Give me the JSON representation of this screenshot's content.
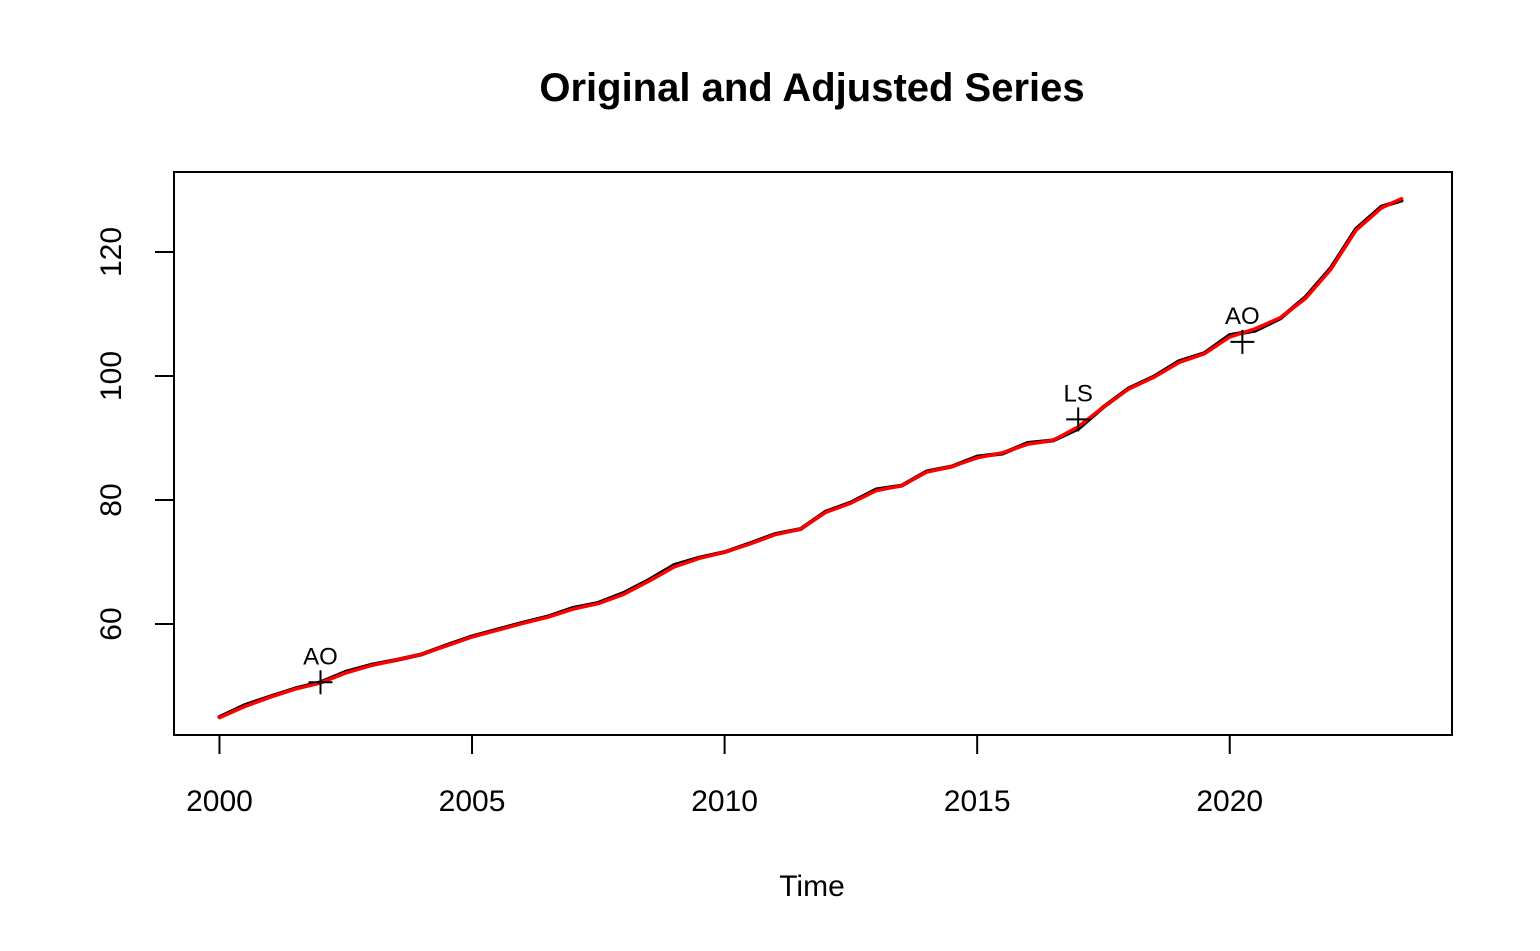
{
  "chart_data": {
    "type": "line",
    "title": "Original and Adjusted Series",
    "xlabel": "Time",
    "ylabel": "",
    "xlim": [
      1999.1,
      2024.4
    ],
    "ylim": [
      42.1,
      132.9
    ],
    "x_ticks": [
      2000,
      2005,
      2010,
      2015,
      2020
    ],
    "x_tick_labels": [
      "2000",
      "2005",
      "2010",
      "2015",
      "2020"
    ],
    "y_ticks": [
      60,
      80,
      100,
      120
    ],
    "y_tick_labels": [
      "60",
      "80",
      "100",
      "120"
    ],
    "grid": false,
    "legend": "none",
    "series": [
      {
        "color": "#000000",
        "x": [
          2000,
          2000.5,
          2001,
          2001.5,
          2002,
          2002.5,
          2003,
          2003.5,
          2004,
          2004.5,
          2005,
          2005.5,
          2006,
          2006.5,
          2007,
          2007.5,
          2008,
          2008.5,
          2009,
          2009.5,
          2010,
          2010.5,
          2011,
          2011.5,
          2012,
          2012.5,
          2013,
          2013.5,
          2014,
          2014.5,
          2015,
          2015.5,
          2016,
          2016.5,
          2017,
          2017.5,
          2018,
          2018.5,
          2019,
          2019.5,
          2020,
          2020.5,
          2021,
          2021.5,
          2022,
          2022.5,
          2023,
          2023.4
        ],
        "y": [
          45.0,
          46.9,
          48.3,
          49.6,
          50.6,
          52.3,
          53.4,
          54.2,
          55.1,
          56.6,
          58.0,
          59.1,
          60.2,
          61.2,
          62.6,
          63.4,
          65.0,
          67.1,
          69.5,
          70.7,
          71.6,
          73.0,
          74.5,
          75.3,
          78.1,
          79.6,
          81.7,
          82.3,
          84.6,
          85.4,
          87.0,
          87.5,
          89.2,
          89.6,
          91.5,
          95.0,
          98.0,
          99.9,
          102.4,
          103.7,
          106.6,
          107.3,
          109.3,
          112.7,
          117.4,
          123.7,
          127.3,
          128.3
        ]
      },
      {
        "color": "#ff0000",
        "x": [
          2000,
          2000.5,
          2001,
          2001.5,
          2002,
          2002.5,
          2003,
          2003.5,
          2004,
          2004.5,
          2005,
          2005.5,
          2006,
          2006.5,
          2007,
          2007.5,
          2008,
          2008.5,
          2009,
          2009.5,
          2010,
          2010.5,
          2011,
          2011.5,
          2012,
          2012.5,
          2013,
          2013.5,
          2014,
          2014.5,
          2015,
          2015.5,
          2016,
          2016.5,
          2017,
          2017.5,
          2018,
          2018.5,
          2019,
          2019.5,
          2020,
          2020.5,
          2021,
          2021.5,
          2022,
          2022.5,
          2023,
          2023.4
        ],
        "y": [
          44.9,
          46.7,
          48.2,
          49.5,
          50.5,
          52.1,
          53.3,
          54.2,
          55.1,
          56.5,
          57.9,
          59.0,
          60.1,
          61.1,
          62.4,
          63.3,
          64.8,
          66.9,
          69.2,
          70.6,
          71.6,
          72.9,
          74.4,
          75.3,
          78.0,
          79.5,
          81.5,
          82.3,
          84.5,
          85.4,
          86.8,
          87.6,
          89.0,
          89.6,
          91.8,
          95.0,
          97.9,
          99.8,
          102.2,
          103.6,
          106.3,
          107.6,
          109.4,
          112.5,
          117.2,
          123.5,
          127.1,
          128.6
        ]
      }
    ],
    "outliers": [
      {
        "label": "AO",
        "x": 2002.0,
        "y": 50.6
      },
      {
        "label": "LS",
        "x": 2017.0,
        "y": 93.0
      },
      {
        "label": "AO",
        "x": 2020.25,
        "y": 105.5
      }
    ]
  }
}
